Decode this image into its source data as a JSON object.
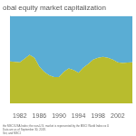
{
  "chart_data": {
    "type": "area",
    "title": "obal equity market capitalization",
    "annotations": [
      "the MSCI USA Index; the non-U.S. market is represented by the MSCI World Index ex U",
      "Data are as of September 30, 2018.",
      "Set, and MSCI."
    ],
    "x": [
      1980,
      1981,
      1982,
      1983,
      1984,
      1985,
      1986,
      1987,
      1988,
      1989,
      1990,
      1991,
      1992,
      1993,
      1994,
      1995,
      1996,
      1997,
      1998,
      1999,
      2000,
      2001,
      2002,
      2003,
      2004,
      2005
    ],
    "series": [
      {
        "color": "#b8bc2e",
        "values": [
          0.48,
          0.475,
          0.47,
          0.51,
          0.555,
          0.52,
          0.42,
          0.36,
          0.32,
          0.3,
          0.3,
          0.36,
          0.4,
          0.38,
          0.35,
          0.41,
          0.45,
          0.5,
          0.52,
          0.53,
          0.52,
          0.5,
          0.47,
          0.46,
          0.465,
          0.47
        ]
      },
      {
        "color": "#5aadd4",
        "values": [
          0.52,
          0.525,
          0.53,
          0.49,
          0.445,
          0.48,
          0.58,
          0.64,
          0.68,
          0.7,
          0.7,
          0.64,
          0.6,
          0.62,
          0.65,
          0.59,
          0.55,
          0.5,
          0.48,
          0.47,
          0.48,
          0.5,
          0.53,
          0.54,
          0.535,
          0.53
        ]
      }
    ],
    "stacked": true,
    "xlim": [
      1980,
      2005
    ],
    "xticks": [
      1982,
      1986,
      1990,
      1994,
      1998,
      2002
    ],
    "ylim": [
      0.0,
      1.0
    ],
    "tick_labels": "x",
    "grid": false
  }
}
